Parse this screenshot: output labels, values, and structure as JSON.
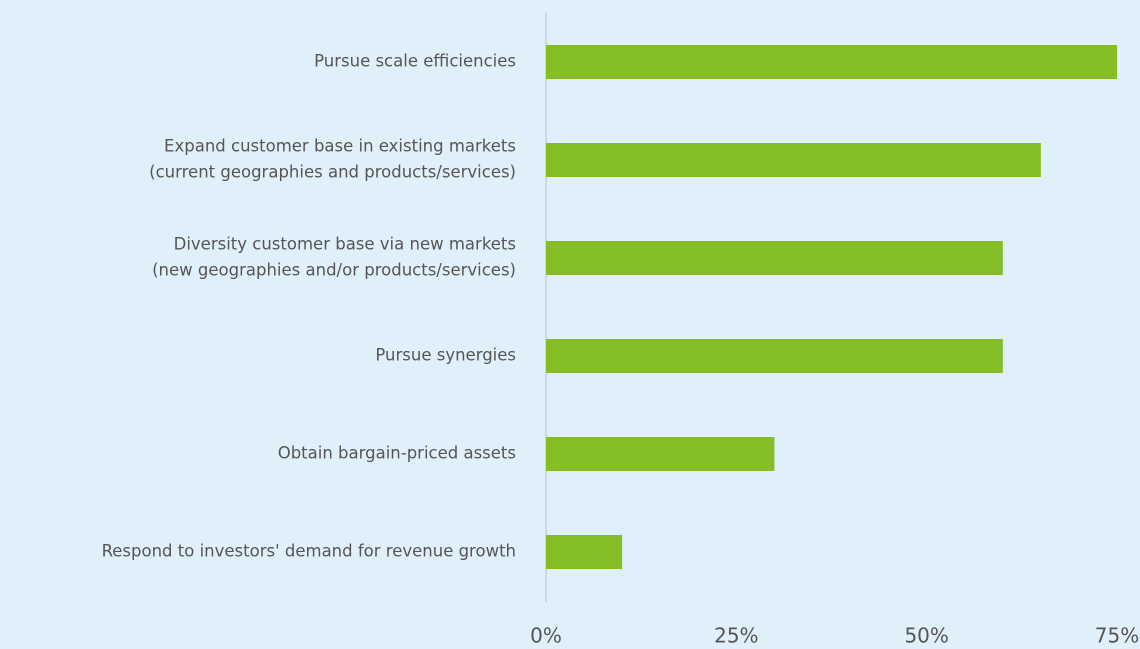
{
  "chart_data": {
    "type": "bar",
    "orientation": "horizontal",
    "categories": [
      [
        "Pursue scale efficiencies"
      ],
      [
        "Expand customer base in existing markets",
        "(current geographies and products/services)"
      ],
      [
        "Diversity customer base via new markets",
        "(new geographies and/or products/services)"
      ],
      [
        "Pursue synergies"
      ],
      [
        "Obtain bargain-priced assets"
      ],
      [
        "Respond to investors' demand for revenue growth"
      ]
    ],
    "values": [
      75,
      65,
      60,
      60,
      30,
      10
    ],
    "color": "#84bd26",
    "xlim": [
      0,
      75
    ],
    "xticks": [
      {
        "value": 0,
        "label": "0%"
      },
      {
        "value": 25,
        "label": "25%"
      },
      {
        "value": 50,
        "label": "50%"
      },
      {
        "value": 75,
        "label": "75%"
      }
    ],
    "grid": false
  }
}
